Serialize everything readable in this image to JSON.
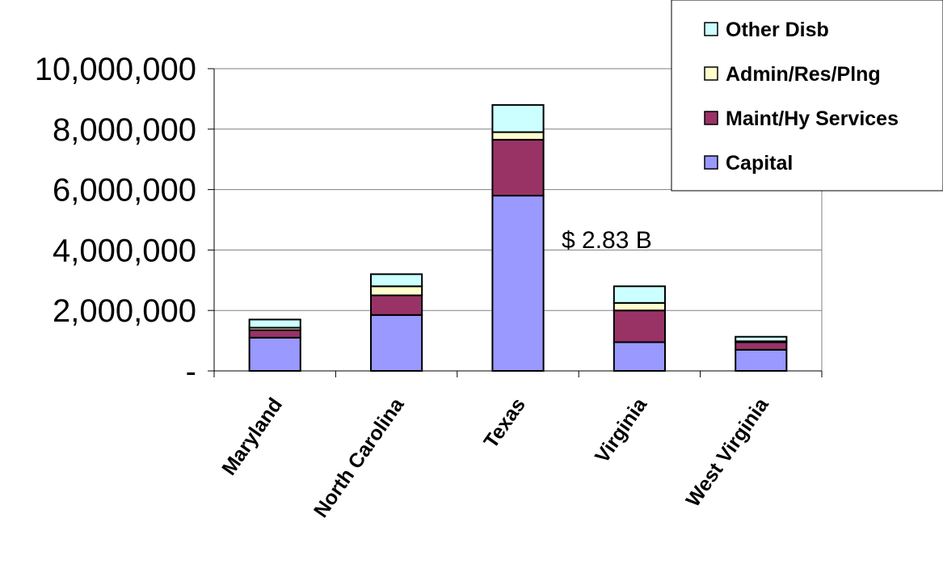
{
  "chart_data": {
    "type": "bar",
    "stacked": true,
    "categories": [
      "Maryland",
      "North Carolina",
      "Texas",
      "Virginia",
      "West Virginia"
    ],
    "series": [
      {
        "name": "Capital",
        "color": "#9999ff",
        "values": [
          1100000,
          1850000,
          5800000,
          950000,
          700000
        ]
      },
      {
        "name": "Maint/Hy Services",
        "color": "#993366",
        "values": [
          250000,
          650000,
          1850000,
          1050000,
          250000
        ]
      },
      {
        "name": "Admin/Res/Plng",
        "color": "#ffffcc",
        "values": [
          80000,
          300000,
          250000,
          250000,
          30000
        ]
      },
      {
        "name": "Other Disb",
        "color": "#ccffff",
        "values": [
          270000,
          400000,
          900000,
          550000,
          150000
        ]
      }
    ],
    "y_ticks": [
      "-",
      "2,000,000",
      "4,000,000",
      "6,000,000",
      "8,000,000",
      "10,000,000"
    ],
    "ylim": [
      0,
      10000000
    ],
    "annotation": "$ 2.83 B",
    "legend_position": "top-right",
    "grid": true
  }
}
